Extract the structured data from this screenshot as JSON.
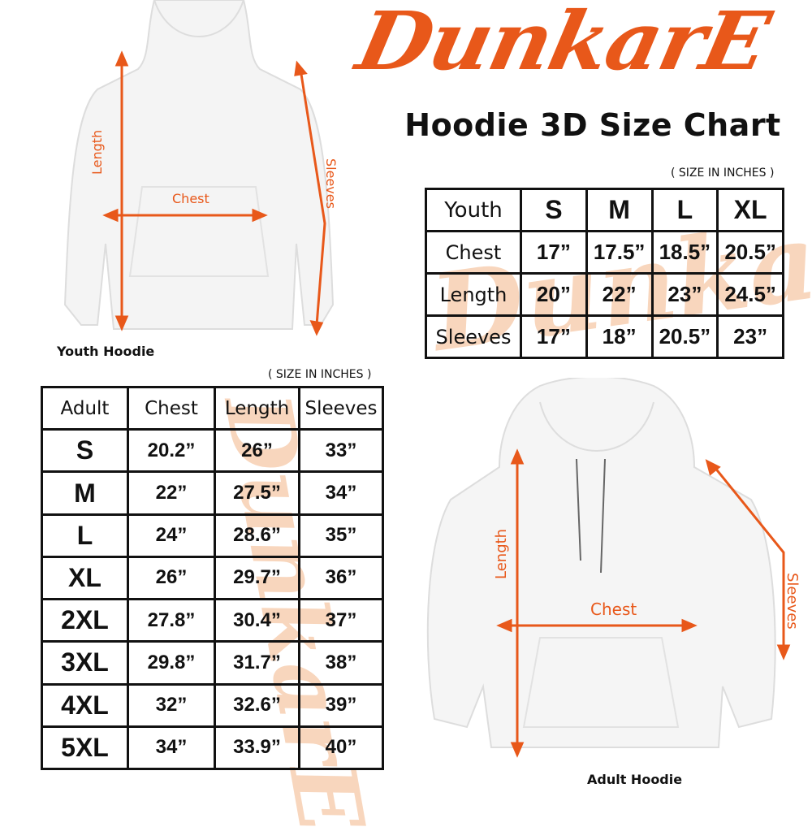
{
  "brand": {
    "logo_text": "DunkarE",
    "watermark": "DunkarE",
    "accent": "#e8581a"
  },
  "title": "Hoodie 3D Size Chart",
  "youth": {
    "image_label": "Youth Hoodie",
    "measure_labels": {
      "length": "Length",
      "chest": "Chest",
      "sleeves": "Sleeves"
    },
    "note": "( SIZE IN INCHES )",
    "corner": "Youth",
    "sizes": [
      "S",
      "M",
      "L",
      "XL"
    ],
    "rows": [
      {
        "label": "Chest",
        "values": [
          "17”",
          "17.5”",
          "18.5”",
          "20.5”"
        ]
      },
      {
        "label": "Length",
        "values": [
          "20”",
          "22”",
          "23”",
          "24.5”"
        ]
      },
      {
        "label": "Sleeves",
        "values": [
          "17”",
          "18”",
          "20.5”",
          "23”"
        ]
      }
    ]
  },
  "adult": {
    "image_label": "Adult Hoodie",
    "measure_labels": {
      "length": "Length",
      "chest": "Chest",
      "sleeves": "Sleeves"
    },
    "note": "( SIZE IN INCHES )",
    "headers": [
      "Adult",
      "Chest",
      "Length",
      "Sleeves"
    ],
    "rows": [
      {
        "size": "S",
        "values": [
          "20.2”",
          "26”",
          "33”"
        ]
      },
      {
        "size": "M",
        "values": [
          "22”",
          "27.5”",
          "34”"
        ]
      },
      {
        "size": "L",
        "values": [
          "24”",
          "28.6”",
          "35”"
        ]
      },
      {
        "size": "XL",
        "values": [
          "26”",
          "29.7”",
          "36”"
        ]
      },
      {
        "size": "2XL",
        "values": [
          "27.8”",
          "30.4”",
          "37”"
        ]
      },
      {
        "size": "3XL",
        "values": [
          "29.8”",
          "31.7”",
          "38”"
        ]
      },
      {
        "size": "4XL",
        "values": [
          "32”",
          "32.6”",
          "39”"
        ]
      },
      {
        "size": "5XL",
        "values": [
          "34”",
          "33.9”",
          "40”"
        ]
      }
    ]
  }
}
